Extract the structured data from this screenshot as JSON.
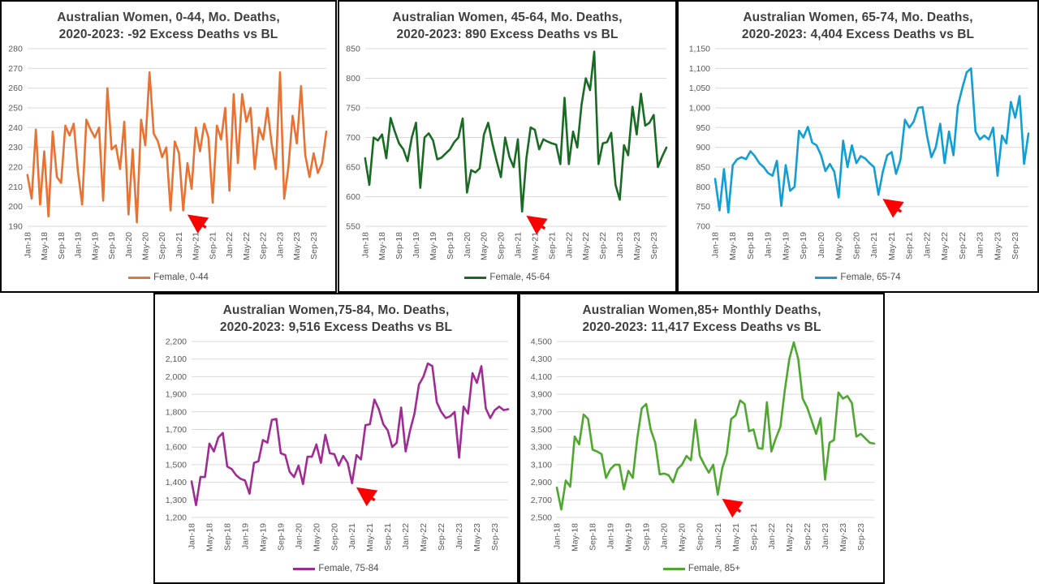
{
  "styles": {
    "grid_color": "#D9D9D9",
    "axis_text_color": "#595959",
    "title_color": "#3F3F3F",
    "arrow_color": "#FF0000",
    "panel_border_color": "#000000",
    "background": "#FFFFFF"
  },
  "x_axis": {
    "n_points": 72,
    "tick_every": 4,
    "tick_labels": [
      "Jan-18",
      "May-18",
      "Sep-18",
      "Jan-19",
      "May-19",
      "Sep-19",
      "Jan-20",
      "May-20",
      "Sep-20",
      "Jan-21",
      "May-21",
      "Sep-21",
      "Jan-22",
      "May-22",
      "Sep-22",
      "Jan-23",
      "May-23",
      "Sep-23"
    ]
  },
  "chart_data": [
    {
      "type": "line",
      "title_lines": [
        "Australian Women, 0-44, Mo. Deaths,",
        "2020-2023: -92 Excess Deaths vs BL"
      ],
      "series_name": "Female, 0-44",
      "color": "#E97132",
      "ylim": [
        190,
        280
      ],
      "ytick_step": 10,
      "values": [
        216,
        204,
        239,
        201,
        228,
        195,
        238,
        215,
        212,
        241,
        236,
        242,
        218,
        201,
        244,
        239,
        235,
        240,
        203,
        260,
        229,
        231,
        219,
        243,
        196,
        229,
        192,
        244,
        231,
        268,
        237,
        233,
        225,
        230,
        198,
        233,
        227,
        198,
        222,
        209,
        240,
        228,
        242,
        235,
        202,
        241,
        234,
        250,
        208,
        257,
        222,
        257,
        243,
        250,
        219,
        240,
        234,
        250,
        232,
        219,
        268,
        204,
        220,
        246,
        232,
        261,
        226,
        215,
        227,
        217,
        222,
        238
      ],
      "annotation": {
        "shape": "red-arrow",
        "points_to_month": "Feb-21",
        "index": 37
      }
    },
    {
      "type": "line",
      "title_lines": [
        "Australian Women, 45-64, Mo. Deaths,",
        "2020-2023: 890 Excess Deaths vs BL"
      ],
      "series_name": "Female, 45-64",
      "color": "#196B24",
      "ylim": [
        550,
        850
      ],
      "ytick_step": 50,
      "values": [
        665,
        620,
        700,
        695,
        705,
        665,
        733,
        710,
        690,
        680,
        660,
        700,
        725,
        615,
        700,
        707,
        695,
        663,
        666,
        673,
        680,
        692,
        700,
        732,
        607,
        645,
        641,
        648,
        705,
        725,
        690,
        660,
        633,
        700,
        667,
        650,
        697,
        575,
        665,
        717,
        713,
        680,
        697,
        693,
        690,
        688,
        655,
        767,
        655,
        710,
        683,
        755,
        800,
        780,
        845,
        655,
        690,
        692,
        708,
        620,
        595,
        687,
        670,
        752,
        705,
        774,
        720,
        725,
        738,
        650,
        668,
        683
      ],
      "annotation": {
        "shape": "red-arrow",
        "points_to_month": "Feb-21",
        "index": 37
      }
    },
    {
      "type": "line",
      "title_lines": [
        "Australian Women, 65-74, Mo. Deaths,",
        "2020-2023: 4,404 Excess Deaths vs BL"
      ],
      "series_name": "Female, 65-74",
      "color": "#0F9ED5",
      "ylim": [
        700,
        1150
      ],
      "ytick_step": 50,
      "values": [
        820,
        740,
        845,
        735,
        855,
        870,
        875,
        870,
        890,
        878,
        860,
        850,
        835,
        828,
        866,
        752,
        855,
        790,
        800,
        942,
        925,
        952,
        912,
        905,
        880,
        840,
        858,
        838,
        773,
        917,
        850,
        905,
        860,
        878,
        872,
        860,
        850,
        780,
        838,
        880,
        888,
        833,
        868,
        970,
        950,
        965,
        1000,
        1002,
        930,
        875,
        900,
        960,
        860,
        940,
        880,
        1005,
        1050,
        1090,
        1100,
        940,
        920,
        930,
        920,
        950,
        828,
        930,
        910,
        1015,
        975,
        1030,
        858,
        935
      ],
      "annotation": {
        "shape": "red-arrow",
        "points_to_month": "Feb-21",
        "index": 37
      }
    },
    {
      "type": "line",
      "title_lines": [
        "Australian Women,75-84, Mo. Deaths,",
        "2020-2023: 9,516 Excess Deaths vs BL"
      ],
      "series_name": "Female, 75-84",
      "color": "#A02B93",
      "ylim": [
        1200,
        2200
      ],
      "ytick_step": 100,
      "values": [
        1405,
        1270,
        1430,
        1430,
        1620,
        1575,
        1655,
        1680,
        1490,
        1475,
        1440,
        1420,
        1410,
        1335,
        1510,
        1520,
        1640,
        1625,
        1755,
        1760,
        1565,
        1555,
        1460,
        1430,
        1495,
        1390,
        1545,
        1545,
        1615,
        1510,
        1670,
        1565,
        1560,
        1495,
        1550,
        1510,
        1395,
        1555,
        1530,
        1725,
        1730,
        1870,
        1815,
        1730,
        1695,
        1600,
        1625,
        1825,
        1575,
        1695,
        1790,
        1955,
        2000,
        2075,
        2060,
        1855,
        1800,
        1765,
        1775,
        1800,
        1540,
        1830,
        1790,
        2020,
        1965,
        2060,
        1820,
        1765,
        1810,
        1830,
        1810,
        1815
      ],
      "annotation": {
        "shape": "red-arrow",
        "points_to_month": "Jan-21",
        "index": 36
      }
    },
    {
      "type": "line",
      "title_lines": [
        "Australian Women,85+ Monthly Deaths,",
        "2020-2023: 11,417 Excess Deaths vs BL"
      ],
      "series_name": "Female, 85+",
      "color": "#4EA72E",
      "ylim": [
        2500,
        4500
      ],
      "ytick_step": 200,
      "values": [
        2840,
        2590,
        2920,
        2850,
        3420,
        3330,
        3670,
        3620,
        3270,
        3250,
        3220,
        2950,
        3050,
        3100,
        3100,
        2820,
        3030,
        2950,
        3400,
        3740,
        3790,
        3500,
        3350,
        2990,
        3000,
        2980,
        2900,
        3050,
        3100,
        3200,
        3150,
        3610,
        3200,
        3100,
        3010,
        3100,
        2760,
        3060,
        3220,
        3620,
        3660,
        3830,
        3790,
        3480,
        3500,
        3290,
        3280,
        3810,
        3250,
        3400,
        3530,
        3950,
        4300,
        4490,
        4300,
        3850,
        3750,
        3600,
        3450,
        3630,
        2930,
        3350,
        3380,
        3920,
        3850,
        3880,
        3800,
        3420,
        3450,
        3400,
        3350,
        3340
      ],
      "annotation": {
        "shape": "red-arrow",
        "points_to_month": "Jan-21",
        "index": 36
      }
    }
  ]
}
